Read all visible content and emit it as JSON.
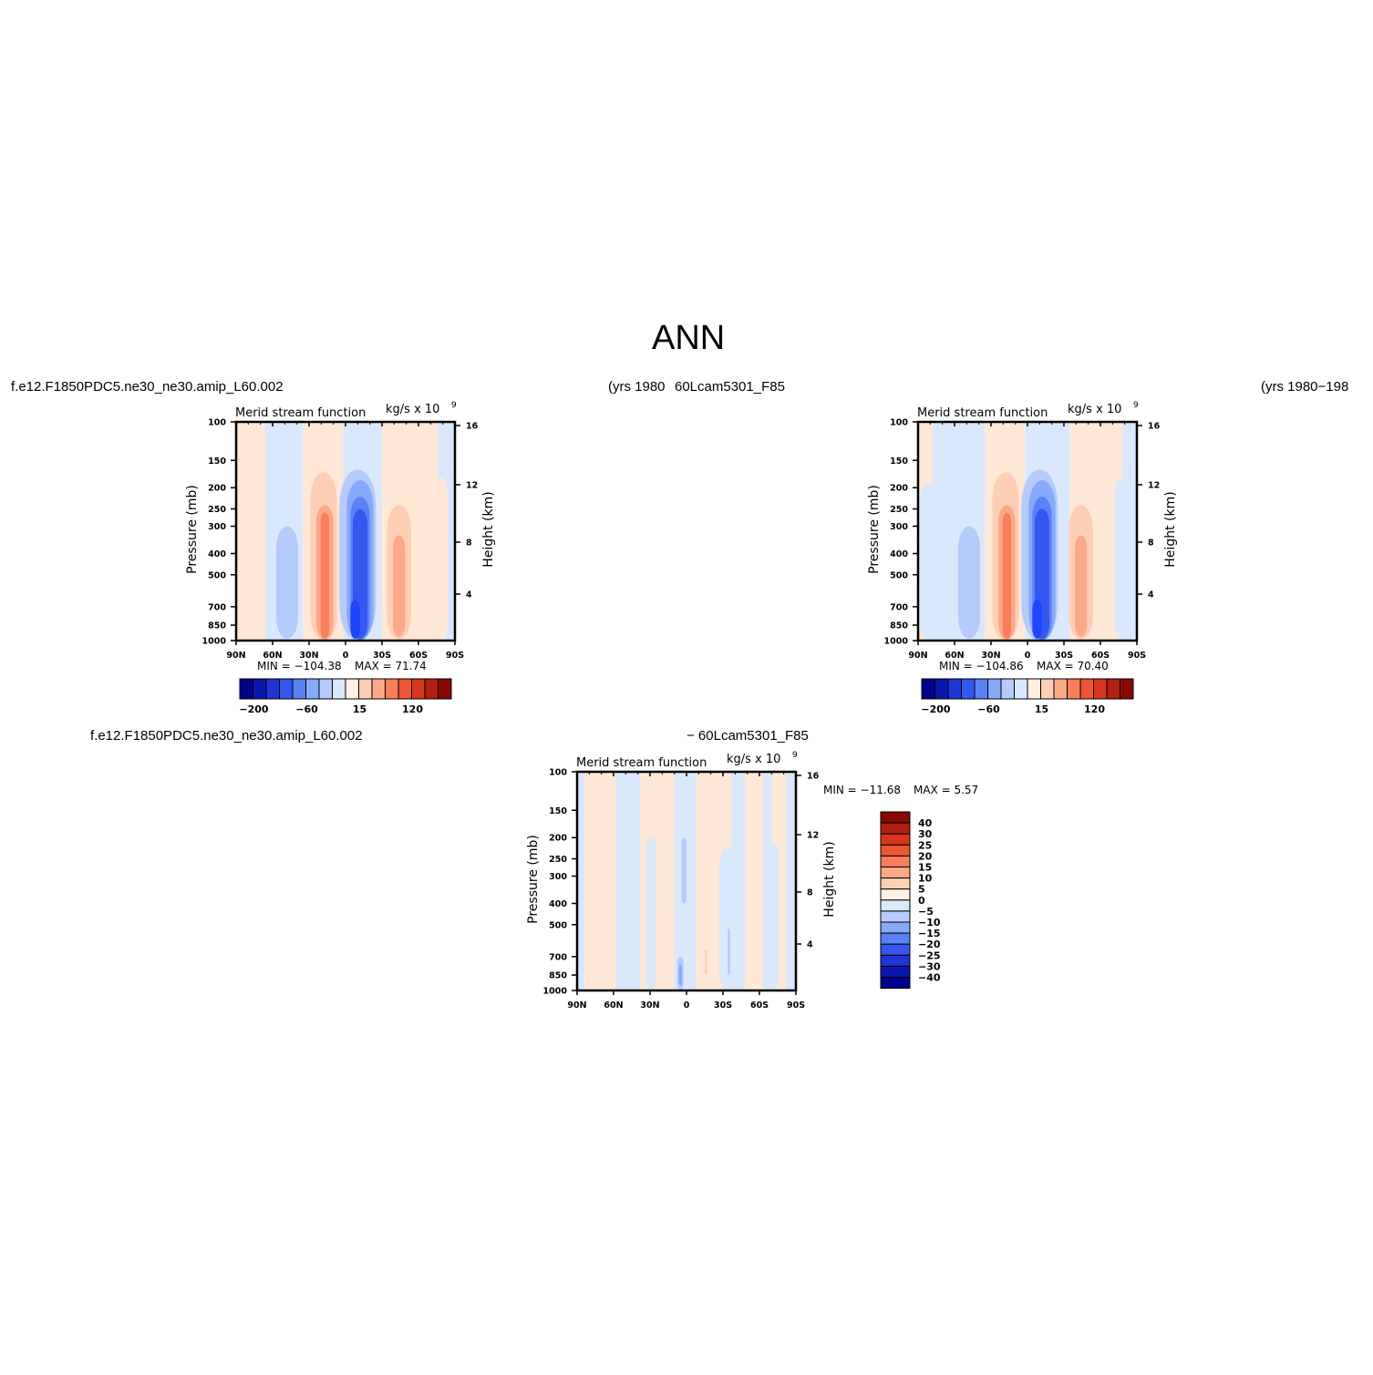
{
  "page_title": "ANN",
  "strings": {
    "top_left_case": "f.e12.F1850PDC5.ne30_ne30.amip_L60.002",
    "top_left_years": "(yrs 1980",
    "top_right_case": "60Lcam5301_F85",
    "top_right_years": "(yrs 1980−198",
    "bottom_case": "f.e12.F1850PDC5.ne30_ne30.amip_L60.002",
    "bottom_case2": "−  60Lcam5301_F85"
  },
  "colors": {
    "zero_line": "#ffffff",
    "frame": "#000000"
  },
  "panel_labels": {
    "left_title": "Merid stream function",
    "right_title": "kg/s  x  10",
    "right_title_sup": "9",
    "ylabel": "Pressure (mb)",
    "ylabel_right": "Height (km)"
  },
  "chart_data": [
    {
      "id": "panel-1",
      "type": "heatmap",
      "title": "Merid stream function",
      "units": "kg/s  x  10^9",
      "xlabel": "",
      "ylabel": "Pressure (mb)",
      "ylabel_right": "Height (km)",
      "x_ticks": [
        "90N",
        "60N",
        "30N",
        "0",
        "30S",
        "60S",
        "90S"
      ],
      "y_ticks": [
        100,
        150,
        200,
        250,
        300,
        400,
        500,
        700,
        850,
        1000
      ],
      "y_right_ticks": [
        4,
        8,
        12,
        16
      ],
      "y_scale": "log",
      "ylim": [
        1000,
        100
      ],
      "xlim": [
        90,
        -90
      ],
      "min_label": "MIN = −104.38",
      "max_label": "MAX =   71.74",
      "levels": [
        -200,
        -160,
        -120,
        -80,
        -60,
        -40,
        -20,
        -5,
        0,
        5,
        15,
        40,
        60,
        80,
        120,
        160,
        200
      ],
      "colorbar_labels": [
        "−200",
        "−60",
        "15",
        "120"
      ],
      "cells": [
        {
          "lat": 72,
          "value": 8
        },
        {
          "lat": 50,
          "value": -18
        },
        {
          "lat": 16,
          "value": 72
        },
        {
          "lat": -12,
          "value": -104
        },
        {
          "lat": -45,
          "value": 45
        }
      ]
    },
    {
      "id": "panel-2",
      "type": "heatmap",
      "title": "Merid stream function",
      "units": "kg/s  x  10^9",
      "xlabel": "",
      "ylabel": "Pressure (mb)",
      "ylabel_right": "Height (km)",
      "x_ticks": [
        "90N",
        "60N",
        "30N",
        "0",
        "30S",
        "60S",
        "90S"
      ],
      "y_ticks": [
        100,
        150,
        200,
        250,
        300,
        400,
        500,
        700,
        850,
        1000
      ],
      "y_right_ticks": [
        4,
        8,
        12,
        16
      ],
      "y_scale": "log",
      "ylim": [
        1000,
        100
      ],
      "xlim": [
        90,
        -90
      ],
      "min_label": "MIN = −104.86",
      "max_label": "MAX =   70.40",
      "levels": [
        -200,
        -160,
        -120,
        -80,
        -60,
        -40,
        -20,
        -5,
        0,
        5,
        15,
        40,
        60,
        80,
        120,
        160,
        200
      ],
      "colorbar_labels": [
        "−200",
        "−60",
        "15",
        "120"
      ],
      "cells": [
        {
          "lat": 72,
          "value": -8
        },
        {
          "lat": 50,
          "value": -25
        },
        {
          "lat": 16,
          "value": 70
        },
        {
          "lat": -12,
          "value": -105
        },
        {
          "lat": -45,
          "value": 42
        }
      ]
    },
    {
      "id": "panel-3",
      "type": "heatmap",
      "title": "Merid stream function",
      "units": "kg/s  x  10^9",
      "xlabel": "",
      "ylabel": "Pressure (mb)",
      "ylabel_right": "Height (km)",
      "x_ticks": [
        "90N",
        "60N",
        "30N",
        "0",
        "30S",
        "60S",
        "90S"
      ],
      "y_ticks": [
        100,
        150,
        200,
        250,
        300,
        400,
        500,
        700,
        850,
        1000
      ],
      "y_right_ticks": [
        4,
        8,
        12,
        16
      ],
      "y_scale": "log",
      "ylim": [
        1000,
        100
      ],
      "xlim": [
        90,
        -90
      ],
      "min_label": "MIN = −11.68",
      "max_label": "MAX =    5.57",
      "levels": [
        -40,
        -30,
        -25,
        -20,
        -15,
        -10,
        -5,
        0,
        5,
        10,
        15,
        20,
        25,
        30,
        40
      ],
      "colorbar_labels": [
        "40",
        "30",
        "25",
        "20",
        "15",
        "10",
        "5",
        "0",
        "−5",
        "−10",
        "−15",
        "−20",
        "−25",
        "−30",
        "−40"
      ]
    }
  ],
  "colorbar_colors_main": [
    "#00008b",
    "#0a16b0",
    "#1f35d4",
    "#3458ef",
    "#5a82f7",
    "#87a9fa",
    "#b4cbfb",
    "#d9e8fd",
    "#fff0e2",
    "#fdd0b5",
    "#fca98a",
    "#f97e5b",
    "#ee5532",
    "#d6361c",
    "#b2200f",
    "#870a00"
  ],
  "colorbar_colors_diff": [
    "#870a00",
    "#b2200f",
    "#d6361c",
    "#ee5532",
    "#f97e5b",
    "#fca98a",
    "#fdd0b5",
    "#fff0e2",
    "#d9e8fd",
    "#b4cbfb",
    "#87a9fa",
    "#5a82f7",
    "#3458ef",
    "#1f35d4",
    "#0a16b0",
    "#00008b"
  ]
}
